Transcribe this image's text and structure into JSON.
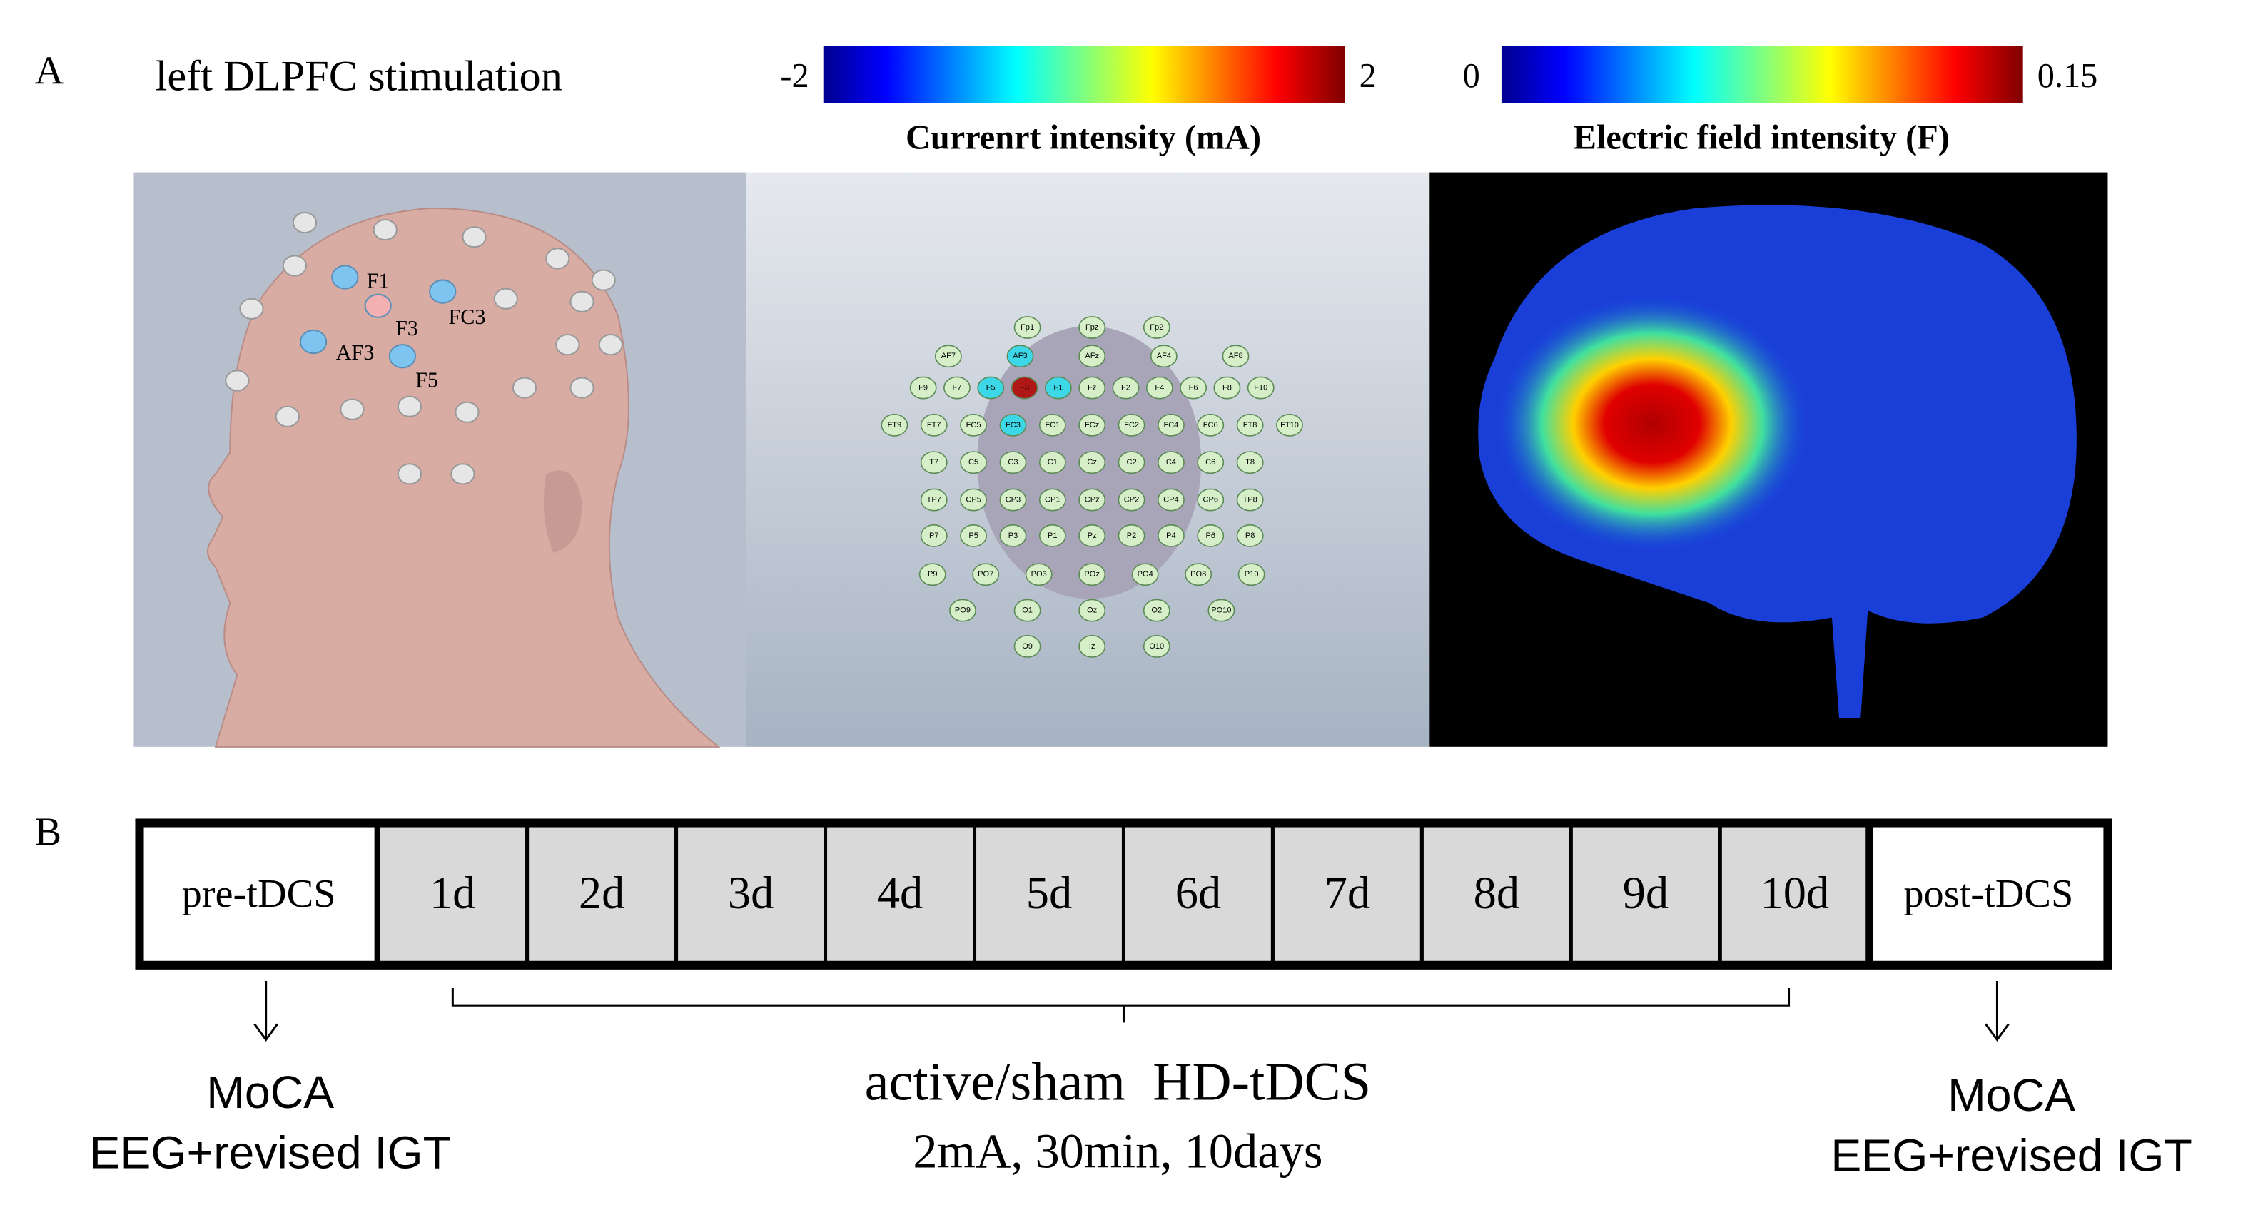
{
  "panel_a": {
    "label": "A",
    "title": "left DLPFC stimulation",
    "current_colorbar": {
      "min": -2,
      "max": 2,
      "label": "Currenrt intensity (mA)"
    },
    "field_colorbar": {
      "min": 0,
      "max": 0.15,
      "label": "Electric field intensity (F)"
    },
    "head_electrodes": [
      "F1",
      "F3",
      "FC3",
      "AF3",
      "F5"
    ],
    "cap_electrodes": [
      [
        "Fp1",
        "Fpz",
        "Fp2"
      ],
      [
        "AF7",
        "AF3",
        "AFz",
        "AF4",
        "AF8"
      ],
      [
        "F9",
        "F7",
        "F5",
        "F3",
        "F1",
        "Fz",
        "F2",
        "F4",
        "F6",
        "F8",
        "F10"
      ],
      [
        "FT9",
        "FT7",
        "FC5",
        "FC3",
        "FC1",
        "FCz",
        "FC2",
        "FC4",
        "FC6",
        "FT8",
        "FT10"
      ],
      [
        "T7",
        "C5",
        "C3",
        "C1",
        "Cz",
        "C2",
        "C4",
        "C6",
        "T8"
      ],
      [
        "TP7",
        "CP5",
        "CP3",
        "CP1",
        "CPz",
        "CP2",
        "CP4",
        "CP6",
        "TP8"
      ],
      [
        "P7",
        "P5",
        "P3",
        "P1",
        "Pz",
        "P2",
        "P4",
        "P6",
        "P8"
      ],
      [
        "P9",
        "PO7",
        "PO3",
        "POz",
        "PO4",
        "PO8",
        "P10"
      ],
      [
        "PO9",
        "O1",
        "Oz",
        "O2",
        "PO10"
      ],
      [
        "O9",
        "Iz",
        "O10"
      ]
    ]
  },
  "panel_b": {
    "label": "B",
    "timeline": [
      "pre-tDCS",
      "1d",
      "2d",
      "3d",
      "4d",
      "5d",
      "6d",
      "7d",
      "8d",
      "9d",
      "10d",
      "post-tDCS"
    ],
    "pre": [
      "MoCA",
      "EEG+revised IGT"
    ],
    "intervention": [
      "active/sham  HD-tDCS",
      "2mA, 30min, 10days"
    ],
    "post": [
      "MoCA",
      "EEG+revised IGT"
    ]
  }
}
